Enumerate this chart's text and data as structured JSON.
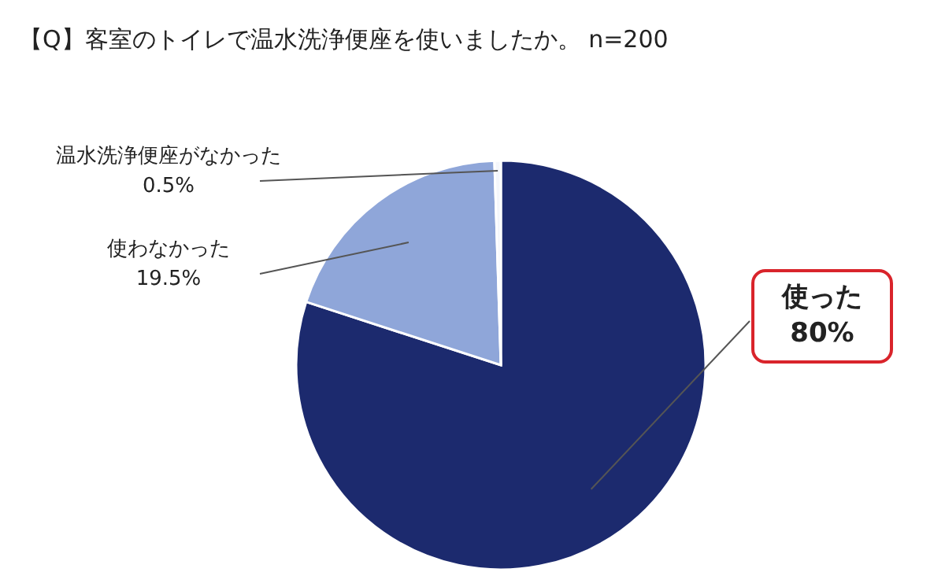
{
  "chart_data": {
    "type": "pie",
    "title": "【Q】客室のトイレで温水洗浄便座を使いましたか。 n=200",
    "categories": [
      "使った",
      "使わなかった",
      "温水洗浄便座がなかった"
    ],
    "values": [
      80,
      19.5,
      0.5
    ],
    "value_labels": [
      "80%",
      "19.5%",
      "0.5%"
    ],
    "colors": [
      "#1c2a6e",
      "#8fa6d9",
      "#f4f6fb"
    ]
  }
}
